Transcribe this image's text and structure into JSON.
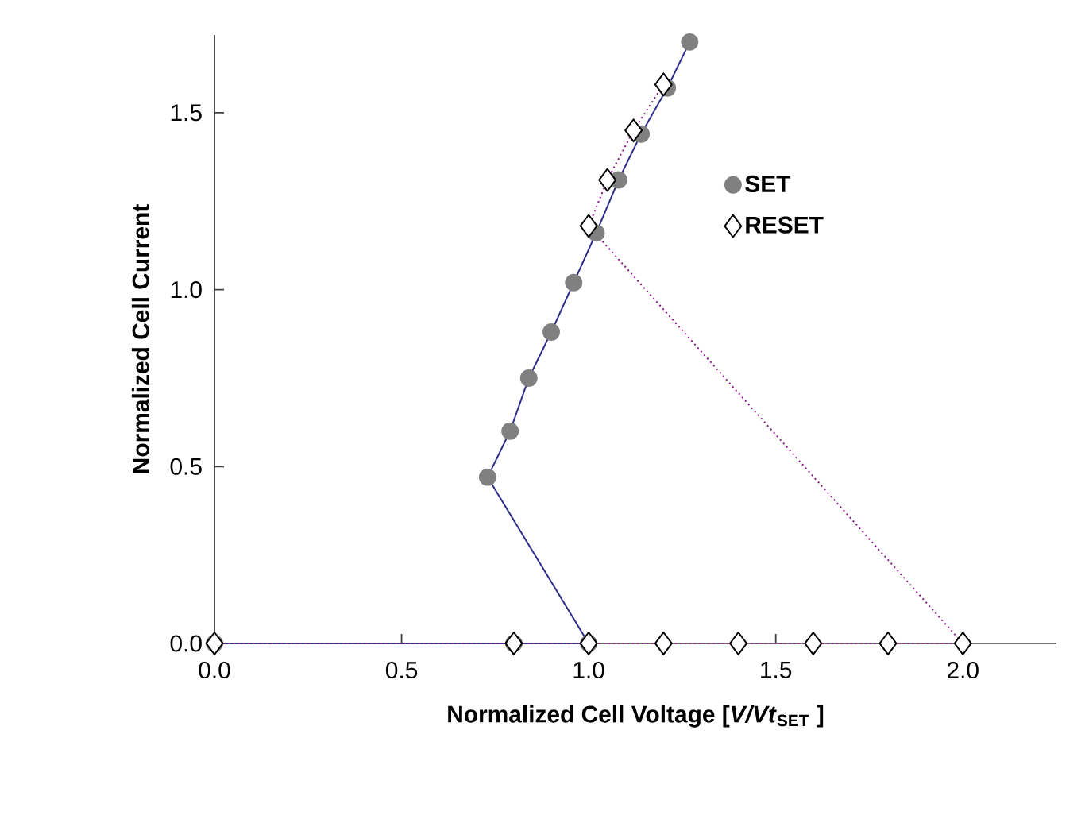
{
  "chart_data": {
    "type": "line",
    "xlabel": "Normalized Cell Voltage [*V/Vt*$_{SET}$ ]",
    "ylabel": "Normalized Cell Current",
    "xlim": [
      0,
      2.25
    ],
    "ylim": [
      0,
      1.72
    ],
    "xticks": [
      {
        "value": 0,
        "label": "0.0"
      },
      {
        "value": 0.5,
        "label": "0.5"
      },
      {
        "value": 1,
        "label": "1.0"
      },
      {
        "value": 1.5,
        "label": "1.5"
      },
      {
        "value": 2,
        "label": "2.0"
      }
    ],
    "yticks": [
      {
        "value": 0,
        "label": "0.0"
      },
      {
        "value": 0.5,
        "label": "0.5"
      },
      {
        "value": 1,
        "label": "1.0"
      },
      {
        "value": 1.5,
        "label": "1.5"
      }
    ],
    "legend": "top right",
    "grid": false,
    "series": [
      {
        "name": "SET",
        "color": "#808080",
        "marker": "circle",
        "line_style": "solid",
        "x": [
          0,
          0.8,
          1.0,
          0.73,
          0.79,
          0.84,
          0.9,
          0.96,
          1.02,
          1.08,
          1.14,
          1.21,
          1.27
        ],
        "values": [
          0,
          0,
          0,
          0.47,
          0.6,
          0.75,
          0.88,
          1.02,
          1.16,
          1.31,
          1.44,
          1.57,
          1.7
        ]
      },
      {
        "name": "RESET",
        "color": "#8b1a8b",
        "marker": "diamond",
        "line_style": "dotted",
        "x": [
          0,
          0.8,
          1.0,
          1.2,
          1.4,
          1.6,
          1.8,
          2.0,
          1.0,
          1.05,
          1.12,
          1.2
        ],
        "values": [
          0,
          0,
          0,
          0,
          0,
          0,
          0,
          0,
          1.18,
          1.31,
          1.45,
          1.58
        ]
      }
    ]
  }
}
